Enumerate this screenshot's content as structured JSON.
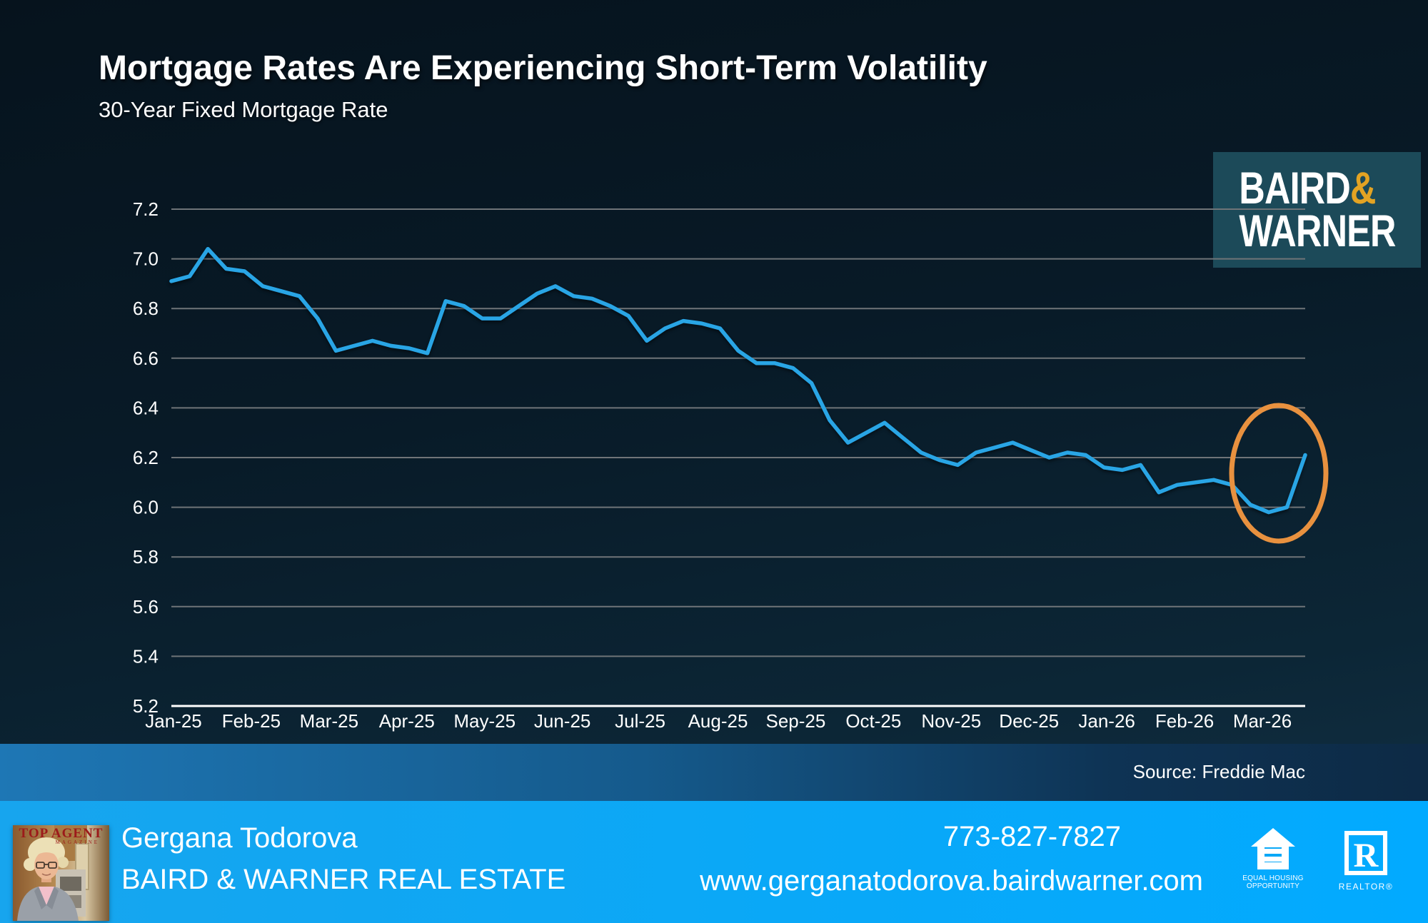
{
  "title": "Mortgage Rates Are Experiencing Short-Term Volatility",
  "subtitle": "30-Year Fixed Mortgage Rate",
  "logo": {
    "name_top": "BAIRD",
    "ampersand": "&",
    "name_bottom": "WARNER"
  },
  "source_label": "Source: Freddie Mac",
  "footer": {
    "agent_name": "Gergana Todorova",
    "company": "BAIRD & WARNER REAL ESTATE",
    "phone": "773-827-7827",
    "website": "www.gerganatodorova.bairdwarner.com",
    "photo_badge_line1": "TOP AGENT",
    "photo_badge_line2": "MAGAZINE",
    "eho_line1": "EQUAL HOUSING",
    "eho_line2": "OPPORTUNITY",
    "realtor_letter": "R",
    "realtor_label": "REALTOR®"
  },
  "colors": {
    "line": "#29a5e5",
    "annotation": "#e8913f",
    "gridline": "#6f7478",
    "axis_line": "#ffffff",
    "tick_text": "#ffffff",
    "logo_bg": "#1c4a59",
    "logo_amp": "#e3a323",
    "footer_blue": "#0aa8f7"
  },
  "chart_data": {
    "type": "line",
    "title": "30-Year Fixed Mortgage Rate",
    "xlabel": "",
    "ylabel": "",
    "ylim": [
      5.2,
      7.35
    ],
    "grid": true,
    "legend": "none",
    "y_ticks": [
      7.2,
      7.0,
      6.8,
      6.6,
      6.4,
      6.2,
      6.0,
      5.8,
      5.6,
      5.4,
      5.2
    ],
    "x_tick_labels": [
      "Jan-25",
      "Feb-25",
      "Mar-25",
      "Apr-25",
      "May-25",
      "Jun-25",
      "Jul-25",
      "Aug-25",
      "Sep-25",
      "Oct-25",
      "Nov-25",
      "Dec-25",
      "Jan-26",
      "Feb-26",
      "Mar-26"
    ],
    "frequency": "weekly",
    "series": [
      {
        "name": "30-Year Fixed Mortgage Rate",
        "values": [
          6.91,
          6.93,
          7.04,
          6.96,
          6.95,
          6.89,
          6.87,
          6.85,
          6.76,
          6.63,
          6.65,
          6.67,
          6.65,
          6.64,
          6.62,
          6.83,
          6.81,
          6.76,
          6.76,
          6.81,
          6.86,
          6.89,
          6.85,
          6.84,
          6.81,
          6.77,
          6.67,
          6.72,
          6.75,
          6.74,
          6.72,
          6.63,
          6.58,
          6.58,
          6.56,
          6.5,
          6.35,
          6.26,
          6.3,
          6.34,
          6.28,
          6.22,
          6.19,
          6.17,
          6.22,
          6.24,
          6.26,
          6.23,
          6.2,
          6.22,
          6.21,
          6.16,
          6.15,
          6.17,
          6.06,
          6.09,
          6.1,
          6.11,
          6.09,
          6.01,
          5.98,
          6.0,
          6.21
        ]
      }
    ],
    "annotation": {
      "shape": "ellipse",
      "color": "#e8913f",
      "note": "orange ellipse circling the recent dip to ~5.98 and rebound to ~6.21 at the end of the series"
    }
  }
}
